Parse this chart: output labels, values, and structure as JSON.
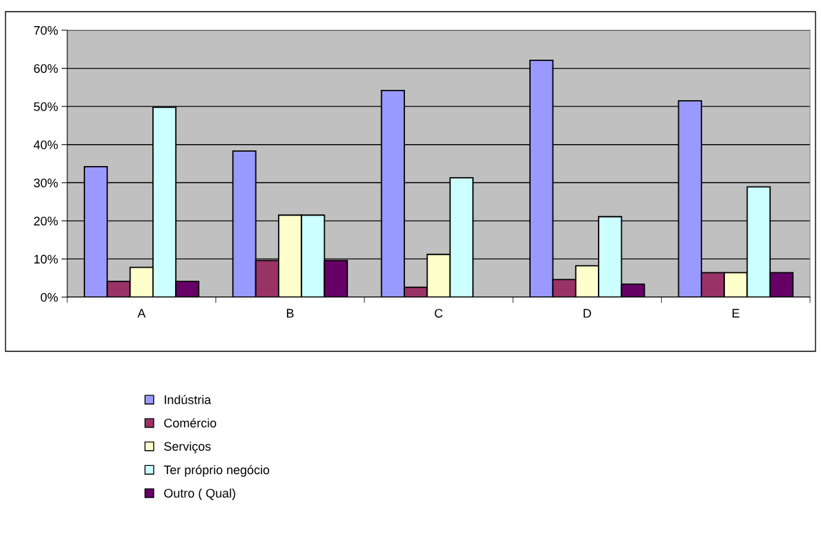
{
  "chart_data": {
    "type": "bar",
    "categories": [
      "A",
      "B",
      "C",
      "D",
      "E"
    ],
    "series": [
      {
        "name": "Indústria",
        "color": "#9999ff",
        "values": [
          34.2,
          38.3,
          54.2,
          62.1,
          51.5
        ]
      },
      {
        "name": "Comércio",
        "color": "#993366",
        "values": [
          4.1,
          9.6,
          2.6,
          4.6,
          6.4
        ]
      },
      {
        "name": "Serviços",
        "color": "#ffffcc",
        "values": [
          7.8,
          21.5,
          11.2,
          8.2,
          6.4
        ]
      },
      {
        "name": "Ter próprio negócio",
        "color": "#ccffff",
        "values": [
          49.8,
          21.5,
          31.3,
          21.1,
          28.9
        ]
      },
      {
        "name": "Outro ( Qual)",
        "color": "#660066",
        "values": [
          4.1,
          9.6,
          null,
          3.4,
          6.4
        ]
      }
    ],
    "ylim": [
      0,
      70
    ],
    "yticks": [
      {
        "value": 0,
        "label": "0%"
      },
      {
        "value": 10,
        "label": "10%"
      },
      {
        "value": 20,
        "label": "20%"
      },
      {
        "value": 30,
        "label": "30%"
      },
      {
        "value": 40,
        "label": "40%"
      },
      {
        "value": 50,
        "label": "50%"
      },
      {
        "value": 60,
        "label": "60%"
      },
      {
        "value": 70,
        "label": "70%"
      }
    ],
    "grid": "y",
    "legend": "bottom"
  }
}
